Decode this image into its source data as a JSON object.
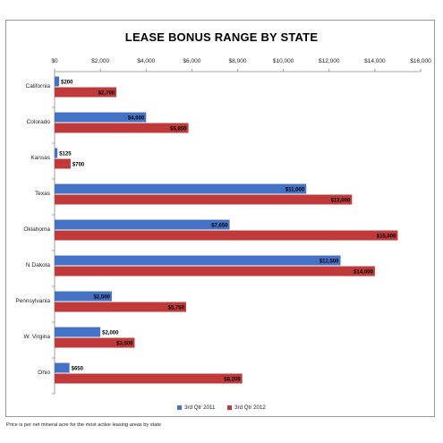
{
  "chart_data": {
    "type": "bar",
    "orientation": "horizontal",
    "title": "LEASE BONUS RANGE BY STATE",
    "categories": [
      "California",
      "Colorado",
      "Kansas",
      "Texas",
      "Oklahoma",
      "N Dakota",
      "Pennsylvania",
      "W. Virgina",
      "Ohio"
    ],
    "series": [
      {
        "name": "3rd Qtr 2011",
        "color": "#4472C4",
        "values": [
          200,
          4000,
          125,
          11000,
          7650,
          12500,
          2500,
          2000,
          650
        ],
        "labels": [
          "$200",
          "$4,000",
          "$125",
          "$11,000",
          "$7,650",
          "$12,500",
          "$2,500",
          "$2,000",
          "$650"
        ]
      },
      {
        "name": "3rd Qtr 2012",
        "color": "#C0393B",
        "values": [
          2700,
          5850,
          700,
          13000,
          15000,
          14000,
          5750,
          3500,
          8200
        ],
        "labels": [
          "$2,700",
          "$5,850",
          "$700",
          "$13,000",
          "$15,000",
          "$14,000",
          "$5,750",
          "$3,500",
          "$8,200"
        ]
      }
    ],
    "xlim": [
      0,
      16000
    ],
    "xticks": [
      0,
      2000,
      4000,
      6000,
      8000,
      10000,
      12000,
      14000,
      16000
    ],
    "xtick_labels": [
      "$0",
      "$2,000",
      "$4,000",
      "$6,000",
      "$8,000",
      "$10,000",
      "$12,000",
      "$14,000",
      "$16,000"
    ],
    "grid": false,
    "legend_position": "bottom",
    "footnote": "Price is per net mineral acre for the most active leasing areas by state"
  }
}
